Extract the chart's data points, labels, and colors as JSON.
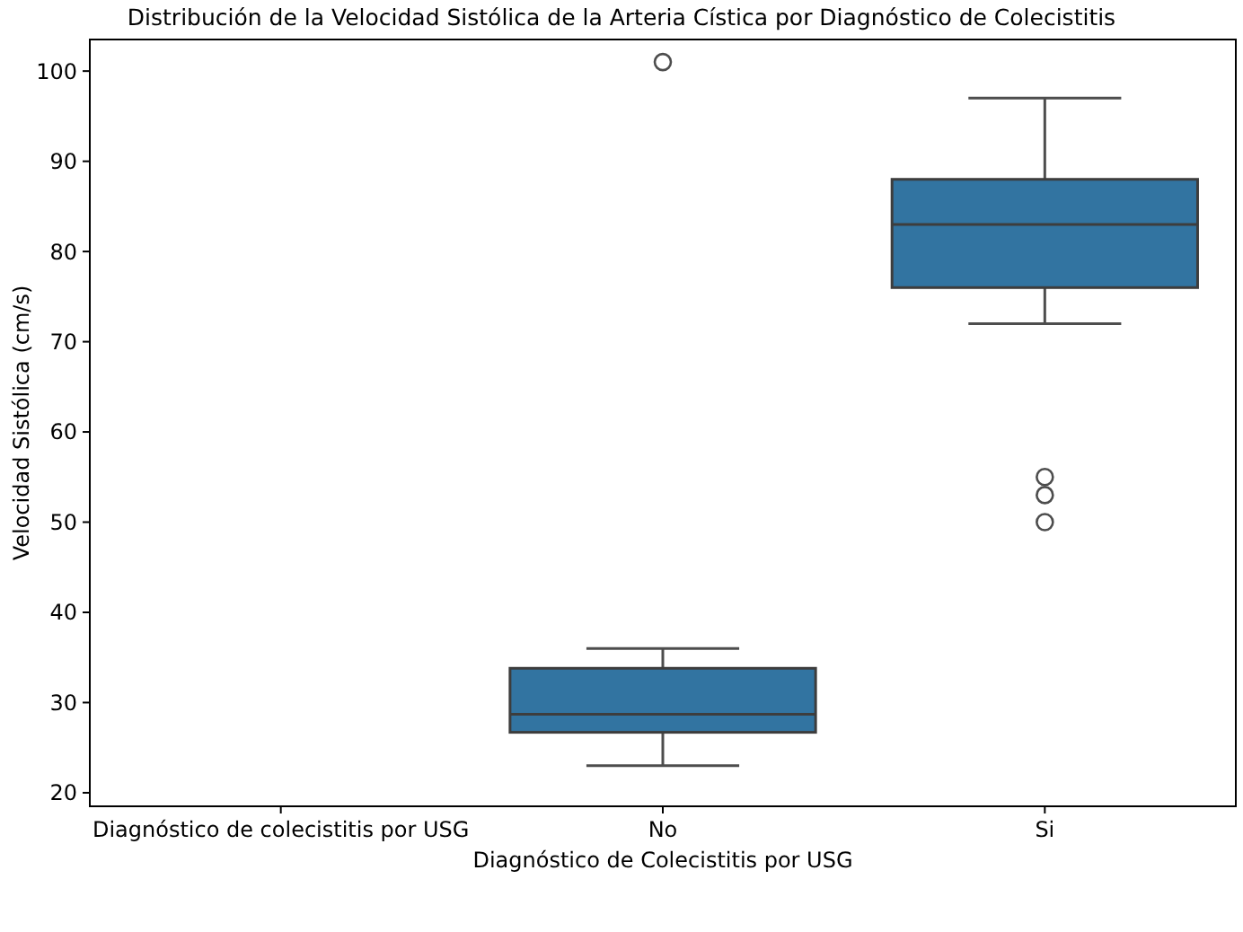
{
  "chart_data": {
    "type": "box",
    "title": "Distribución de la Velocidad Sistólica de la Arteria Cística por Diagnóstico de Colecistitis",
    "xlabel": "Diagnóstico de Colecistitis por USG",
    "ylabel": "Velocidad Sistólica (cm/s)",
    "categories": [
      "Diagnóstico de colecistitis por USG",
      "No",
      "Si"
    ],
    "series": [
      {
        "color": "#3274a1",
        "boxes": [
          null,
          {
            "low": 23,
            "q1": 26.7,
            "median": 28.7,
            "q3": 33.8,
            "high": 36,
            "outliers": [
              101
            ]
          },
          {
            "low": 72,
            "q1": 76,
            "median": 83,
            "q3": 88,
            "high": 97,
            "outliers": [
              55,
              53,
              50
            ]
          }
        ]
      }
    ],
    "ylim": [
      18.5,
      103.5
    ],
    "yticks": [
      20,
      30,
      40,
      50,
      60,
      70,
      80,
      90,
      100
    ],
    "grid": false
  }
}
